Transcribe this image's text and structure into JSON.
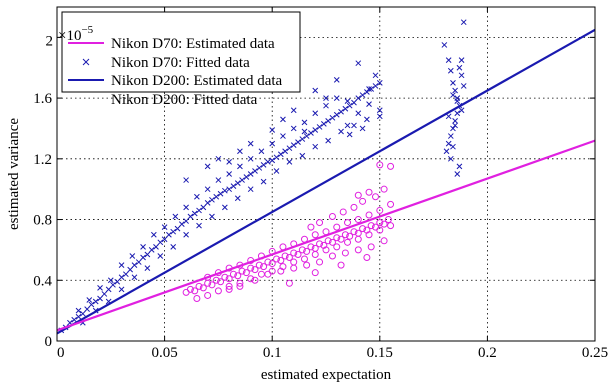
{
  "chart_data": {
    "type": "scatter",
    "xlabel": "estimated expectation",
    "ylabel": "estimated variance",
    "y_exponent_label": "×10",
    "y_exponent_power": "−5",
    "xlim": [
      0,
      0.25
    ],
    "ylim": [
      0,
      2.2
    ],
    "xticks": [
      0,
      0.05,
      0.1,
      0.15,
      0.2,
      0.25
    ],
    "xtick_labels": [
      "0",
      "0.05",
      "0.1",
      "0.15",
      "0.2",
      "0.25"
    ],
    "yticks": [
      0,
      0.4,
      0.8,
      1.2,
      1.6,
      2.0
    ],
    "ytick_labels": [
      "0",
      "0.4",
      "0.8",
      "1.2",
      "1.6",
      "2"
    ],
    "grid": true,
    "legend_position": "top-left",
    "legend": [
      {
        "label": "Nikon D70: Estimated data",
        "style": "line",
        "color": "#e020e0"
      },
      {
        "label": "Nikon D70: Fitted data",
        "style": "x",
        "color": "#1a1ab0"
      },
      {
        "label": "Nikon D200: Estimated data",
        "style": "line",
        "color": "#1a1ab0"
      },
      {
        "label": "Nikon D200: Fitted data",
        "style": "none",
        "color": "#e020e0"
      }
    ],
    "colors": {
      "magenta": "#e020e0",
      "blue": "#1a1ab0"
    },
    "series": [
      {
        "color": "#1a1ab0",
        "marker": "x",
        "points": [
          [
            0.002,
            0.07
          ],
          [
            0.004,
            0.09
          ],
          [
            0.006,
            0.12
          ],
          [
            0.008,
            0.14
          ],
          [
            0.01,
            0.16
          ],
          [
            0.012,
            0.18
          ],
          [
            0.014,
            0.21
          ],
          [
            0.016,
            0.24
          ],
          [
            0.018,
            0.26
          ],
          [
            0.02,
            0.28
          ],
          [
            0.022,
            0.31
          ],
          [
            0.024,
            0.34
          ],
          [
            0.026,
            0.37
          ],
          [
            0.028,
            0.39
          ],
          [
            0.03,
            0.42
          ],
          [
            0.032,
            0.44
          ],
          [
            0.034,
            0.47
          ],
          [
            0.036,
            0.5
          ],
          [
            0.038,
            0.52
          ],
          [
            0.04,
            0.55
          ],
          [
            0.042,
            0.57
          ],
          [
            0.044,
            0.6
          ],
          [
            0.046,
            0.62
          ],
          [
            0.048,
            0.65
          ],
          [
            0.05,
            0.67
          ],
          [
            0.052,
            0.7
          ],
          [
            0.054,
            0.72
          ],
          [
            0.056,
            0.74
          ],
          [
            0.058,
            0.77
          ],
          [
            0.06,
            0.79
          ],
          [
            0.062,
            0.82
          ],
          [
            0.064,
            0.84
          ],
          [
            0.066,
            0.86
          ],
          [
            0.068,
            0.88
          ],
          [
            0.07,
            0.91
          ],
          [
            0.072,
            0.93
          ],
          [
            0.074,
            0.95
          ],
          [
            0.076,
            0.97
          ],
          [
            0.078,
            0.99
          ],
          [
            0.08,
            1.0
          ],
          [
            0.082,
            1.02
          ],
          [
            0.084,
            1.04
          ],
          [
            0.086,
            1.06
          ],
          [
            0.088,
            1.08
          ],
          [
            0.09,
            1.1
          ],
          [
            0.092,
            1.12
          ],
          [
            0.094,
            1.14
          ],
          [
            0.096,
            1.16
          ],
          [
            0.098,
            1.18
          ],
          [
            0.1,
            1.19
          ],
          [
            0.102,
            1.21
          ],
          [
            0.104,
            1.23
          ],
          [
            0.106,
            1.25
          ],
          [
            0.108,
            1.27
          ],
          [
            0.11,
            1.29
          ],
          [
            0.112,
            1.31
          ],
          [
            0.114,
            1.33
          ],
          [
            0.116,
            1.35
          ],
          [
            0.118,
            1.37
          ],
          [
            0.12,
            1.39
          ],
          [
            0.122,
            1.41
          ],
          [
            0.124,
            1.43
          ],
          [
            0.126,
            1.45
          ],
          [
            0.128,
            1.47
          ],
          [
            0.13,
            1.49
          ],
          [
            0.132,
            1.51
          ],
          [
            0.134,
            1.53
          ],
          [
            0.136,
            1.55
          ],
          [
            0.138,
            1.57
          ],
          [
            0.14,
            1.6
          ],
          [
            0.142,
            1.62
          ],
          [
            0.144,
            1.64
          ],
          [
            0.146,
            1.66
          ],
          [
            0.148,
            1.68
          ],
          [
            0.15,
            1.7
          ],
          [
            0.01,
            0.2
          ],
          [
            0.015,
            0.27
          ],
          [
            0.02,
            0.35
          ],
          [
            0.025,
            0.4
          ],
          [
            0.03,
            0.5
          ],
          [
            0.035,
            0.56
          ],
          [
            0.04,
            0.62
          ],
          [
            0.045,
            0.7
          ],
          [
            0.05,
            0.75
          ],
          [
            0.055,
            0.82
          ],
          [
            0.06,
            0.88
          ],
          [
            0.065,
            0.95
          ],
          [
            0.07,
            1.0
          ],
          [
            0.075,
            1.06
          ],
          [
            0.08,
            1.1
          ],
          [
            0.085,
            1.15
          ],
          [
            0.09,
            1.2
          ],
          [
            0.095,
            1.25
          ],
          [
            0.1,
            1.3
          ],
          [
            0.105,
            1.35
          ],
          [
            0.11,
            1.4
          ],
          [
            0.115,
            1.44
          ],
          [
            0.12,
            1.5
          ],
          [
            0.125,
            1.55
          ],
          [
            0.13,
            1.6
          ],
          [
            0.135,
            1.42
          ],
          [
            0.14,
            1.5
          ],
          [
            0.145,
            1.56
          ],
          [
            0.15,
            1.48
          ],
          [
            0.012,
            0.12
          ],
          [
            0.018,
            0.2
          ],
          [
            0.024,
            0.26
          ],
          [
            0.03,
            0.34
          ],
          [
            0.036,
            0.42
          ],
          [
            0.042,
            0.48
          ],
          [
            0.048,
            0.56
          ],
          [
            0.054,
            0.62
          ],
          [
            0.06,
            0.7
          ],
          [
            0.066,
            0.76
          ],
          [
            0.072,
            0.82
          ],
          [
            0.078,
            0.88
          ],
          [
            0.084,
            0.94
          ],
          [
            0.09,
            1.0
          ],
          [
            0.096,
            1.05
          ],
          [
            0.102,
            1.12
          ],
          [
            0.108,
            1.18
          ],
          [
            0.114,
            1.22
          ],
          [
            0.12,
            1.28
          ],
          [
            0.126,
            1.32
          ],
          [
            0.132,
            1.38
          ],
          [
            0.138,
            1.42
          ],
          [
            0.144,
            1.46
          ],
          [
            0.15,
            1.52
          ],
          [
            0.06,
            1.06
          ],
          [
            0.07,
            1.15
          ],
          [
            0.075,
            1.2
          ],
          [
            0.08,
            1.18
          ],
          [
            0.085,
            1.25
          ],
          [
            0.09,
            1.3
          ],
          [
            0.1,
            1.39
          ],
          [
            0.105,
            1.46
          ],
          [
            0.11,
            1.52
          ],
          [
            0.115,
            1.38
          ],
          [
            0.12,
            1.65
          ],
          [
            0.125,
            1.6
          ],
          [
            0.13,
            1.72
          ],
          [
            0.135,
            1.58
          ],
          [
            0.14,
            1.83
          ],
          [
            0.145,
            1.66
          ],
          [
            0.148,
            1.75
          ],
          [
            0.142,
            1.4
          ],
          [
            0.136,
            1.36
          ],
          [
            0.18,
            1.95
          ],
          [
            0.182,
            1.85
          ],
          [
            0.183,
            1.78
          ],
          [
            0.184,
            1.7
          ],
          [
            0.185,
            1.65
          ],
          [
            0.186,
            1.6
          ],
          [
            0.187,
            1.55
          ],
          [
            0.186,
            1.5
          ],
          [
            0.185,
            1.45
          ],
          [
            0.184,
            1.4
          ],
          [
            0.183,
            1.35
          ],
          [
            0.182,
            1.3
          ],
          [
            0.181,
            1.25
          ],
          [
            0.187,
            1.8
          ],
          [
            0.188,
            1.75
          ],
          [
            0.189,
            1.68
          ],
          [
            0.184,
            1.62
          ],
          [
            0.186,
            1.58
          ],
          [
            0.188,
            1.52
          ],
          [
            0.185,
            1.42
          ],
          [
            0.183,
            1.2
          ],
          [
            0.187,
            1.15
          ],
          [
            0.186,
            1.1
          ],
          [
            0.189,
            2.1
          ],
          [
            0.188,
            1.85
          ],
          [
            0.184,
            1.28
          ],
          [
            0.182,
            1.48
          ]
        ]
      },
      {
        "color": "#e020e0",
        "marker": "o",
        "points": [
          [
            0.06,
            0.32
          ],
          [
            0.062,
            0.34
          ],
          [
            0.064,
            0.33
          ],
          [
            0.066,
            0.36
          ],
          [
            0.068,
            0.35
          ],
          [
            0.07,
            0.38
          ],
          [
            0.072,
            0.37
          ],
          [
            0.074,
            0.4
          ],
          [
            0.076,
            0.39
          ],
          [
            0.078,
            0.42
          ],
          [
            0.08,
            0.41
          ],
          [
            0.082,
            0.44
          ],
          [
            0.084,
            0.43
          ],
          [
            0.086,
            0.46
          ],
          [
            0.088,
            0.45
          ],
          [
            0.09,
            0.48
          ],
          [
            0.092,
            0.47
          ],
          [
            0.094,
            0.5
          ],
          [
            0.096,
            0.49
          ],
          [
            0.098,
            0.52
          ],
          [
            0.1,
            0.51
          ],
          [
            0.102,
            0.54
          ],
          [
            0.104,
            0.53
          ],
          [
            0.106,
            0.56
          ],
          [
            0.108,
            0.55
          ],
          [
            0.11,
            0.58
          ],
          [
            0.112,
            0.57
          ],
          [
            0.114,
            0.6
          ],
          [
            0.116,
            0.59
          ],
          [
            0.118,
            0.62
          ],
          [
            0.12,
            0.61
          ],
          [
            0.122,
            0.64
          ],
          [
            0.124,
            0.63
          ],
          [
            0.126,
            0.66
          ],
          [
            0.128,
            0.65
          ],
          [
            0.13,
            0.68
          ],
          [
            0.132,
            0.67
          ],
          [
            0.134,
            0.7
          ],
          [
            0.136,
            0.69
          ],
          [
            0.138,
            0.72
          ],
          [
            0.14,
            0.71
          ],
          [
            0.142,
            0.74
          ],
          [
            0.144,
            0.73
          ],
          [
            0.146,
            0.76
          ],
          [
            0.148,
            0.75
          ],
          [
            0.15,
            0.78
          ],
          [
            0.152,
            0.77
          ],
          [
            0.154,
            0.8
          ],
          [
            0.065,
            0.28
          ],
          [
            0.07,
            0.3
          ],
          [
            0.075,
            0.33
          ],
          [
            0.08,
            0.36
          ],
          [
            0.085,
            0.38
          ],
          [
            0.09,
            0.41
          ],
          [
            0.095,
            0.44
          ],
          [
            0.1,
            0.46
          ],
          [
            0.105,
            0.49
          ],
          [
            0.11,
            0.52
          ],
          [
            0.115,
            0.54
          ],
          [
            0.12,
            0.57
          ],
          [
            0.125,
            0.6
          ],
          [
            0.13,
            0.62
          ],
          [
            0.135,
            0.65
          ],
          [
            0.14,
            0.67
          ],
          [
            0.145,
            0.7
          ],
          [
            0.15,
            0.73
          ],
          [
            0.155,
            0.76
          ],
          [
            0.07,
            0.42
          ],
          [
            0.075,
            0.45
          ],
          [
            0.08,
            0.48
          ],
          [
            0.085,
            0.5
          ],
          [
            0.09,
            0.53
          ],
          [
            0.095,
            0.56
          ],
          [
            0.1,
            0.59
          ],
          [
            0.105,
            0.62
          ],
          [
            0.11,
            0.64
          ],
          [
            0.115,
            0.67
          ],
          [
            0.12,
            0.7
          ],
          [
            0.125,
            0.72
          ],
          [
            0.13,
            0.75
          ],
          [
            0.135,
            0.78
          ],
          [
            0.14,
            0.8
          ],
          [
            0.145,
            0.83
          ],
          [
            0.15,
            0.86
          ],
          [
            0.155,
            0.9
          ],
          [
            0.152,
            1.0
          ],
          [
            0.148,
            0.95
          ],
          [
            0.142,
            0.92
          ],
          [
            0.138,
            0.88
          ],
          [
            0.133,
            0.85
          ],
          [
            0.128,
            0.82
          ],
          [
            0.122,
            0.78
          ],
          [
            0.118,
            0.75
          ],
          [
            0.155,
            1.15
          ],
          [
            0.15,
            1.16
          ],
          [
            0.14,
            0.96
          ],
          [
            0.145,
            0.98
          ],
          [
            0.08,
            0.34
          ],
          [
            0.085,
            0.36
          ],
          [
            0.092,
            0.4
          ],
          [
            0.098,
            0.44
          ],
          [
            0.104,
            0.46
          ],
          [
            0.11,
            0.48
          ],
          [
            0.116,
            0.5
          ],
          [
            0.122,
            0.52
          ],
          [
            0.128,
            0.56
          ],
          [
            0.134,
            0.58
          ],
          [
            0.14,
            0.6
          ],
          [
            0.146,
            0.62
          ],
          [
            0.152,
            0.66
          ],
          [
            0.108,
            0.38
          ],
          [
            0.12,
            0.45
          ],
          [
            0.132,
            0.5
          ],
          [
            0.144,
            0.55
          ]
        ]
      }
    ],
    "fit_lines": [
      {
        "color": "#1a1ab0",
        "x": [
          0,
          0.25
        ],
        "y": [
          0.05,
          2.05
        ]
      },
      {
        "color": "#e020e0",
        "x": [
          0,
          0.25
        ],
        "y": [
          0.07,
          1.32
        ]
      }
    ]
  }
}
